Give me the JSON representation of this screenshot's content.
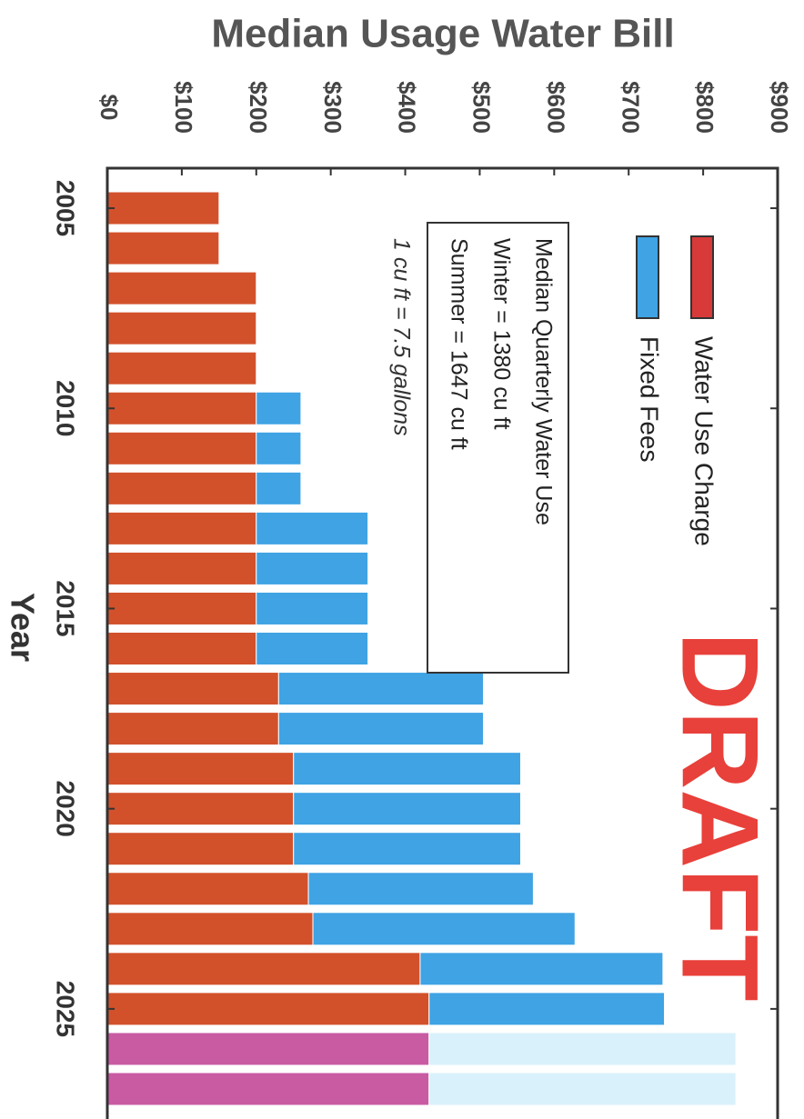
{
  "chart_data": {
    "type": "bar",
    "stacked": true,
    "orientation": "rotated-90-clockwise",
    "title": "Median Usage Water Bill",
    "xlabel": "Year",
    "x": [
      2005,
      2006,
      2007,
      2008,
      2009,
      2010,
      2011,
      2012,
      2013,
      2014,
      2015,
      2016,
      2017,
      2018,
      2019,
      2020,
      2021,
      2022,
      2023,
      2024,
      2025,
      2026,
      2027
    ],
    "xlim": [
      2004,
      2027.75
    ],
    "xticks": [
      2005,
      2010,
      2015,
      2020,
      2025
    ],
    "ylim": [
      0,
      900
    ],
    "yticks": [
      {
        "value": 0,
        "label": "$0"
      },
      {
        "value": 100,
        "label": "$100"
      },
      {
        "value": 200,
        "label": "$200"
      },
      {
        "value": 300,
        "label": "$300"
      },
      {
        "value": 400,
        "label": "$400"
      },
      {
        "value": 500,
        "label": "$500"
      },
      {
        "value": 600,
        "label": "$600"
      },
      {
        "value": 700,
        "label": "$700"
      },
      {
        "value": 800,
        "label": "$800"
      },
      {
        "value": 900,
        "label": "$900"
      }
    ],
    "series": [
      {
        "name": "Water Use Charge",
        "color": "#d2512b",
        "values": [
          150,
          150,
          200,
          200,
          200,
          200,
          200,
          200,
          200,
          200,
          200,
          200,
          230,
          230,
          250,
          250,
          250,
          270,
          276,
          420,
          432,
          432,
          432
        ],
        "colors": [
          "#d2512b",
          "#d2512b",
          "#d2512b",
          "#d2512b",
          "#d2512b",
          "#d2512b",
          "#d2512b",
          "#d2512b",
          "#d2512b",
          "#d2512b",
          "#d2512b",
          "#d2512b",
          "#d2512b",
          "#d2512b",
          "#d2512b",
          "#d2512b",
          "#d2512b",
          "#d2512b",
          "#d2512b",
          "#d2512b",
          "#d2512b",
          "#c95ba3",
          "#c95ba3"
        ]
      },
      {
        "name": "Fixed Fees",
        "color": "#3fa3e4",
        "values": [
          0,
          0,
          0,
          0,
          0,
          60,
          60,
          60,
          150,
          150,
          150,
          150,
          275,
          275,
          305,
          305,
          305,
          302,
          352,
          326,
          316,
          412,
          412
        ],
        "colors": [
          "#3fa3e4",
          "#3fa3e4",
          "#3fa3e4",
          "#3fa3e4",
          "#3fa3e4",
          "#3fa3e4",
          "#3fa3e4",
          "#3fa3e4",
          "#3fa3e4",
          "#3fa3e4",
          "#3fa3e4",
          "#3fa3e4",
          "#3fa3e4",
          "#3fa3e4",
          "#3fa3e4",
          "#3fa3e4",
          "#3fa3e4",
          "#3fa3e4",
          "#3fa3e4",
          "#3fa3e4",
          "#3fa3e4",
          "#d9f1fb",
          "#d9f1fb"
        ]
      }
    ],
    "annotations": [
      "Median Quarterly Water Use",
      "Winter = 1380 cu ft",
      "Summer = 1647 cu ft",
      "1 cu ft = 7.5 gallons",
      "DRAFT"
    ]
  }
}
